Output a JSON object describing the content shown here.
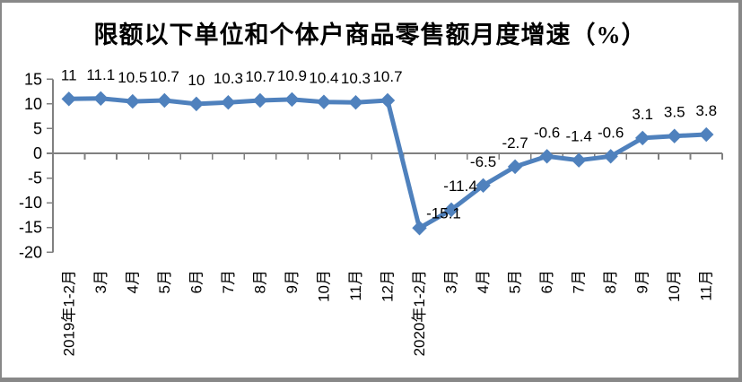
{
  "chart_data": {
    "type": "line",
    "title": "限额以下单位和个体户商品零售额月度增速（%）",
    "categories": [
      "2019年1-2月",
      "3月",
      "4月",
      "5月",
      "6月",
      "7月",
      "8月",
      "9月",
      "10月",
      "11月",
      "12月",
      "2020年1-2月",
      "3月",
      "4月",
      "5月",
      "6月",
      "7月",
      "8月",
      "9月",
      "10月",
      "11月"
    ],
    "values": [
      11,
      11.1,
      10.5,
      10.7,
      10,
      10.3,
      10.7,
      10.9,
      10.4,
      10.3,
      10.7,
      -15.1,
      -11.4,
      -6.5,
      -2.7,
      -0.6,
      -1.4,
      -0.6,
      3.1,
      3.5,
      3.8
    ],
    "data_labels": [
      "11",
      "11.1",
      "10.5",
      "10.7",
      "10",
      "10.3",
      "10.7",
      "10.9",
      "10.4",
      "10.3",
      "10.7",
      "-15.1",
      "-11.4",
      "-6.5",
      "-2.7",
      "-0.6",
      "-1.4",
      "-0.6",
      "3.1",
      "3.5",
      "3.8"
    ],
    "y_ticks": [
      15,
      10,
      5,
      0,
      -5,
      -10,
      -15,
      -20
    ],
    "ylim": [
      -20,
      15
    ],
    "xlabel": "",
    "ylabel": "",
    "grid": false,
    "legend": "none",
    "marker": "diamond",
    "series_color": "#4F81BD",
    "axis_color": "#808080",
    "text_color": "#000000",
    "background_color": "#FFFFFF"
  }
}
